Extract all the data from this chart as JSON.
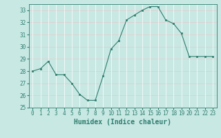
{
  "x": [
    0,
    1,
    2,
    3,
    4,
    5,
    6,
    7,
    8,
    9,
    10,
    11,
    12,
    13,
    14,
    15,
    16,
    17,
    18,
    19,
    20,
    21,
    22,
    23
  ],
  "y": [
    28.0,
    28.2,
    28.8,
    27.7,
    27.7,
    27.0,
    26.1,
    25.6,
    25.6,
    27.6,
    29.8,
    30.5,
    32.2,
    32.6,
    33.0,
    33.3,
    33.3,
    32.2,
    31.9,
    31.1,
    29.2,
    29.2,
    29.2,
    29.2
  ],
  "line_color": "#2e7d6e",
  "marker_color": "#2e7d6e",
  "bg_color": "#c8e8e4",
  "grid_major_color": "#e8c8c8",
  "grid_minor_color": "#ffffff",
  "xlabel": "Humidex (Indice chaleur)",
  "ylim": [
    25,
    33.5
  ],
  "yticks": [
    25,
    26,
    27,
    28,
    29,
    30,
    31,
    32,
    33
  ],
  "xticks": [
    0,
    1,
    2,
    3,
    4,
    5,
    6,
    7,
    8,
    9,
    10,
    11,
    12,
    13,
    14,
    15,
    16,
    17,
    18,
    19,
    20,
    21,
    22,
    23
  ],
  "tick_label_fontsize": 5.5,
  "xlabel_fontsize": 7.0,
  "xlabel_fontweight": "bold"
}
